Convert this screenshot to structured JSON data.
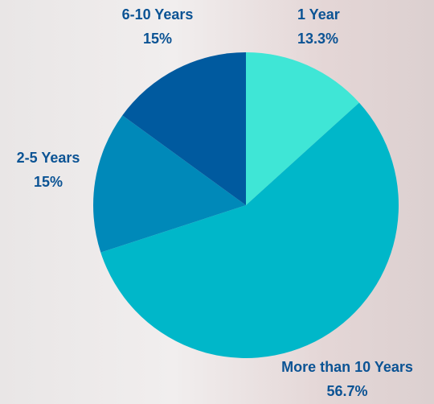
{
  "chart_data": {
    "type": "pie",
    "categories": [
      "1 Year",
      "More than 10 Years",
      "2-5 Years",
      "6-10 Years"
    ],
    "values": [
      13.3,
      56.7,
      15,
      15
    ],
    "value_labels": [
      "13.3%",
      "56.7%",
      "15%",
      "15%"
    ],
    "colors": [
      "#3fe6d6",
      "#00b7c9",
      "#0089b9",
      "#005a9f"
    ]
  }
}
